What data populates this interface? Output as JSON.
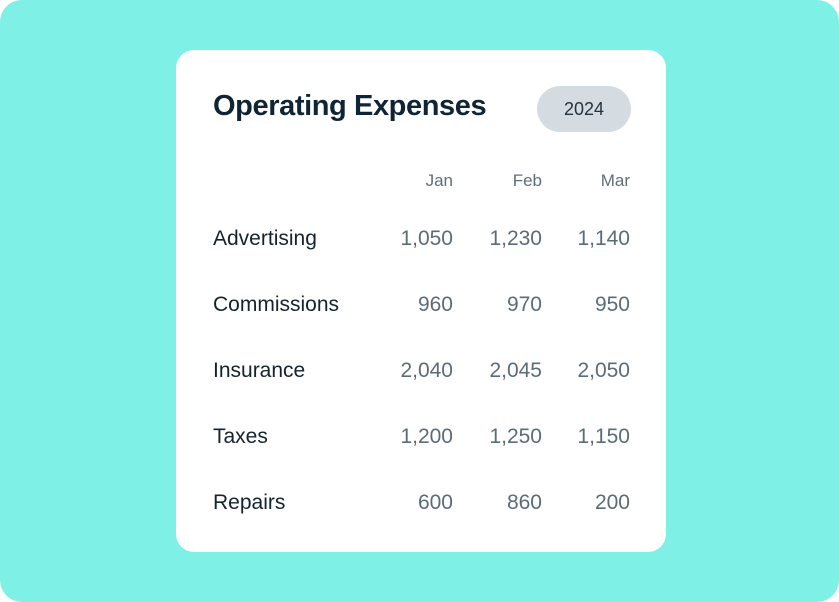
{
  "card": {
    "title": "Operating Expenses",
    "year": "2024"
  },
  "table": {
    "columns": [
      "Jan",
      "Feb",
      "Mar"
    ],
    "rows": [
      {
        "label": "Advertising",
        "values": [
          "1,050",
          "1,230",
          "1,140"
        ]
      },
      {
        "label": "Commissions",
        "values": [
          "960",
          "970",
          "950"
        ]
      },
      {
        "label": "Insurance",
        "values": [
          "2,040",
          "2,045",
          "2,050"
        ]
      },
      {
        "label": "Taxes",
        "values": [
          "1,200",
          "1,250",
          "1,150"
        ]
      },
      {
        "label": "Repairs",
        "values": [
          "600",
          "860",
          "200"
        ]
      }
    ]
  },
  "colors": {
    "background": "#7ef0e6",
    "card": "#ffffff",
    "title": "#0f2434",
    "badge_bg": "#d4dce1",
    "value_text": "#5b6c79"
  }
}
